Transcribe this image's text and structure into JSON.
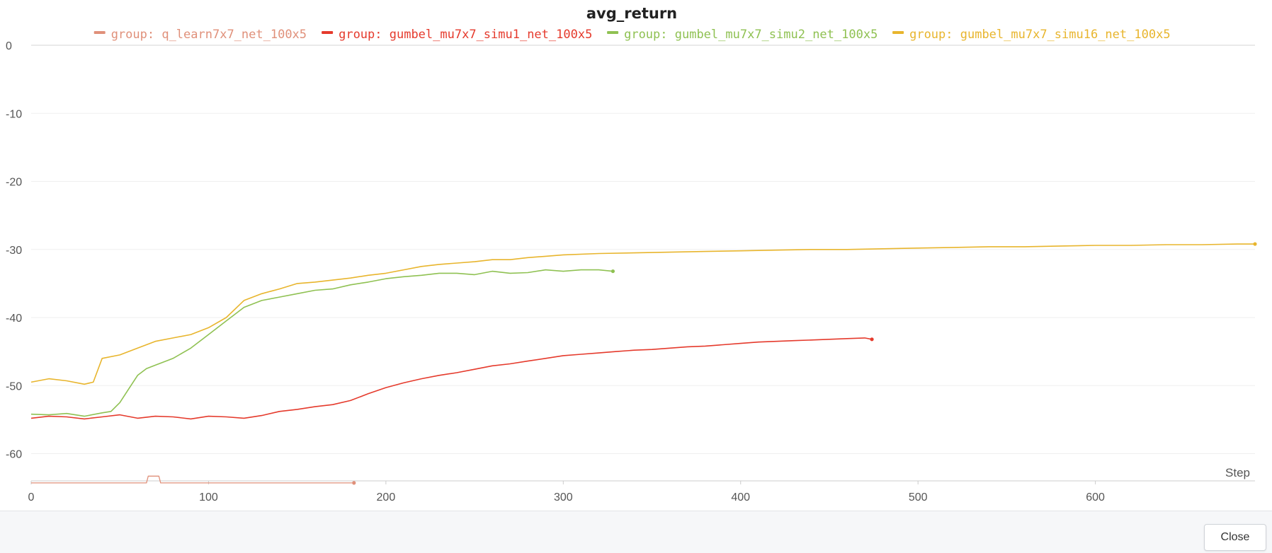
{
  "chart_data": {
    "type": "line",
    "title": "avg_return",
    "xlabel": "Step",
    "ylabel": "",
    "xlim": [
      0,
      690
    ],
    "ylim": [
      -64,
      0
    ],
    "xticks": [
      0,
      100,
      200,
      300,
      400,
      500,
      600
    ],
    "yticks": [
      0,
      -10,
      -20,
      -30,
      -40,
      -50,
      -60
    ],
    "legend_position": "top",
    "grid": true,
    "series": [
      {
        "name": "group: q_learn7x7_net_100x5",
        "color": "#e0907a",
        "x": [
          0,
          65,
          66,
          72,
          73,
          182
        ],
        "y": [
          -64.3,
          -64.3,
          -63.3,
          -63.3,
          -64.3,
          -64.3
        ]
      },
      {
        "name": "group: gumbel_mu7x7_simu1_net_100x5",
        "color": "#e53a2c",
        "x": [
          0,
          10,
          20,
          30,
          40,
          50,
          60,
          70,
          80,
          90,
          100,
          110,
          120,
          130,
          140,
          150,
          160,
          170,
          180,
          190,
          200,
          210,
          220,
          230,
          240,
          250,
          260,
          270,
          280,
          290,
          300,
          310,
          320,
          330,
          340,
          350,
          360,
          370,
          380,
          390,
          400,
          410,
          420,
          430,
          440,
          450,
          460,
          470,
          474
        ],
        "y": [
          -54.8,
          -54.5,
          -54.6,
          -54.9,
          -54.6,
          -54.3,
          -54.8,
          -54.5,
          -54.6,
          -54.9,
          -54.5,
          -54.6,
          -54.8,
          -54.4,
          -53.8,
          -53.5,
          -53.1,
          -52.8,
          -52.2,
          -51.2,
          -50.3,
          -49.6,
          -49.0,
          -48.5,
          -48.1,
          -47.6,
          -47.1,
          -46.8,
          -46.4,
          -46.0,
          -45.6,
          -45.4,
          -45.2,
          -45.0,
          -44.8,
          -44.7,
          -44.5,
          -44.3,
          -44.2,
          -44.0,
          -43.8,
          -43.6,
          -43.5,
          -43.4,
          -43.3,
          -43.2,
          -43.1,
          -43.0,
          -43.2
        ]
      },
      {
        "name": "group: gumbel_mu7x7_simu2_net_100x5",
        "color": "#8fc152",
        "x": [
          0,
          10,
          20,
          30,
          40,
          45,
          50,
          55,
          60,
          65,
          70,
          80,
          90,
          100,
          110,
          120,
          130,
          140,
          150,
          160,
          170,
          180,
          190,
          200,
          210,
          220,
          230,
          240,
          250,
          260,
          270,
          280,
          290,
          300,
          310,
          320,
          328
        ],
        "y": [
          -54.2,
          -54.3,
          -54.1,
          -54.5,
          -54.0,
          -53.8,
          -52.5,
          -50.5,
          -48.5,
          -47.5,
          -47.0,
          -46.0,
          -44.5,
          -42.5,
          -40.5,
          -38.5,
          -37.5,
          -37.0,
          -36.5,
          -36.0,
          -35.8,
          -35.2,
          -34.8,
          -34.3,
          -34.0,
          -33.8,
          -33.5,
          -33.5,
          -33.7,
          -33.2,
          -33.5,
          -33.4,
          -33.0,
          -33.2,
          -33.0,
          -33.0,
          -33.2
        ]
      },
      {
        "name": "group: gumbel_mu7x7_simu16_net_100x5",
        "color": "#e8b52d",
        "x": [
          0,
          10,
          20,
          30,
          35,
          40,
          50,
          60,
          70,
          80,
          90,
          100,
          110,
          120,
          130,
          140,
          150,
          160,
          170,
          180,
          190,
          200,
          210,
          220,
          230,
          240,
          250,
          260,
          270,
          280,
          290,
          300,
          320,
          340,
          360,
          380,
          400,
          420,
          440,
          460,
          480,
          500,
          520,
          540,
          560,
          580,
          600,
          620,
          640,
          660,
          680,
          690
        ],
        "y": [
          -49.5,
          -49.0,
          -49.3,
          -49.8,
          -49.5,
          -46.0,
          -45.5,
          -44.5,
          -43.5,
          -43.0,
          -42.5,
          -41.5,
          -40.0,
          -37.5,
          -36.5,
          -35.8,
          -35.0,
          -34.8,
          -34.5,
          -34.2,
          -33.8,
          -33.5,
          -33.0,
          -32.5,
          -32.2,
          -32.0,
          -31.8,
          -31.5,
          -31.5,
          -31.2,
          -31.0,
          -30.8,
          -30.6,
          -30.5,
          -30.4,
          -30.3,
          -30.2,
          -30.1,
          -30.0,
          -30.0,
          -29.9,
          -29.8,
          -29.7,
          -29.6,
          -29.6,
          -29.5,
          -29.4,
          -29.4,
          -29.3,
          -29.3,
          -29.2,
          -29.2
        ]
      }
    ]
  },
  "footer": {
    "close_label": "Close"
  }
}
